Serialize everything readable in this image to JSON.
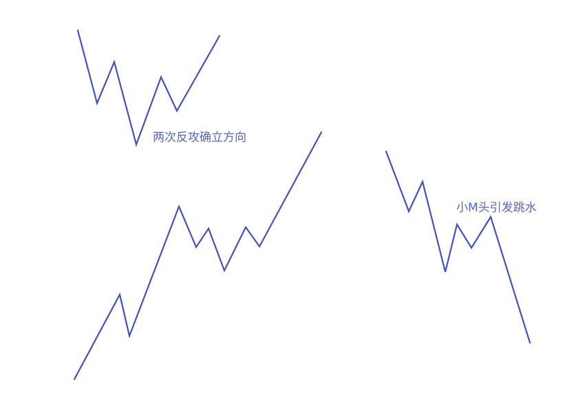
{
  "colors": {
    "line": "#4050c0",
    "text": "#5565c8",
    "background": "#ffffff"
  },
  "annotations": {
    "two_tests": "两次反攻确立方向",
    "small_m_top": "小M头引发跳水"
  },
  "patterns": [
    {
      "id": "double-bottom-pattern"
    },
    {
      "id": "uptrend-pattern"
    },
    {
      "id": "small-m-top-pattern"
    }
  ]
}
